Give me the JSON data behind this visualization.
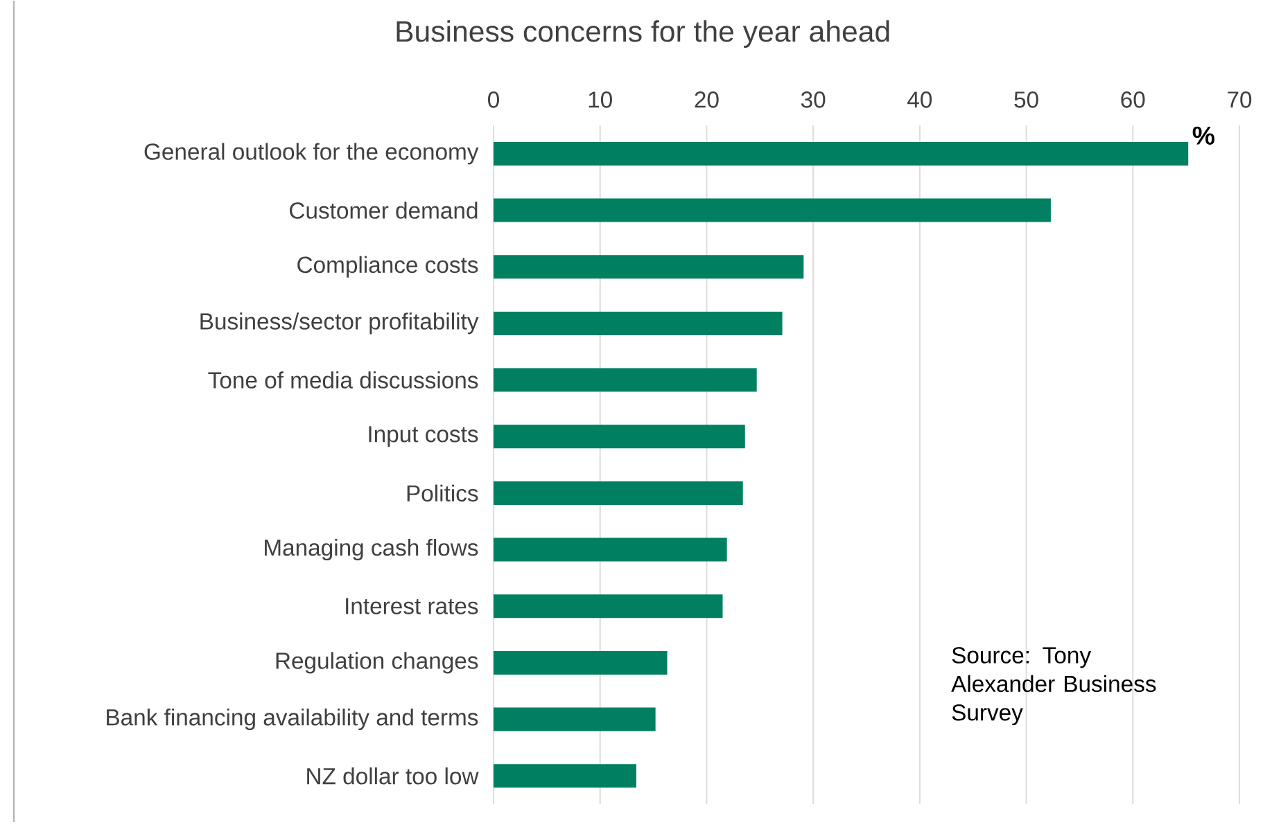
{
  "chart_data": {
    "type": "bar",
    "orientation": "horizontal",
    "title": "Business concerns for the year ahead",
    "xlabel": "%",
    "categories": [
      "General outlook for the economy",
      "Customer demand",
      "Compliance costs",
      "Business/sector profitability",
      "Tone of media discussions",
      "Input costs",
      "Politics",
      "Managing cash flows",
      "Interest rates",
      "Regulation changes",
      "Bank financing availability and terms",
      "NZ dollar too low"
    ],
    "values": [
      65.2,
      52.3,
      29.1,
      27.1,
      24.7,
      23.6,
      23.4,
      21.9,
      21.5,
      16.3,
      15.2,
      13.4
    ],
    "color": "#007f61",
    "xlim": [
      0,
      70
    ],
    "xticks": [
      0,
      10,
      20,
      30,
      40,
      50,
      60,
      70
    ],
    "grid": "x",
    "annotations": [
      "Source: Tony Alexander Business Survey"
    ]
  }
}
